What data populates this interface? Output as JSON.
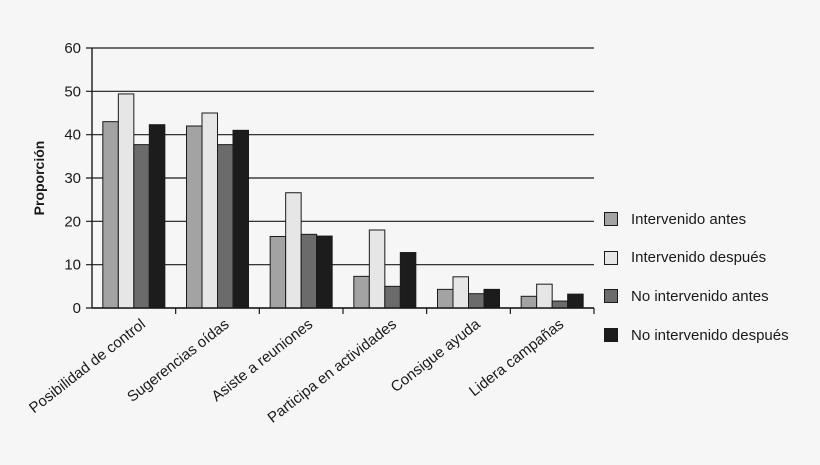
{
  "chart_data": {
    "type": "bar",
    "title": "",
    "xlabel": "",
    "ylabel": "Proporción",
    "ylim": [
      0,
      60
    ],
    "yticks": [
      0,
      10,
      20,
      30,
      40,
      50,
      60
    ],
    "grid": true,
    "legend_position": "right",
    "categories": [
      "Posibilidad de control",
      "Sugerencias oídas",
      "Asiste a reuniones",
      "Participa en actividades",
      "Consigue ayuda",
      "Lidera campañas"
    ],
    "series": [
      {
        "name": "Intervenido antes",
        "color": "#a3a3a3",
        "values": [
          43,
          42,
          16.5,
          7.3,
          4.3,
          2.7
        ]
      },
      {
        "name": "Intervenido después",
        "color": "#e6e6e6",
        "values": [
          49.4,
          45,
          26.6,
          18,
          7.2,
          5.5
        ]
      },
      {
        "name": "No intervenido antes",
        "color": "#6b6b6b",
        "values": [
          37.7,
          37.7,
          17,
          5,
          3.3,
          1.6
        ]
      },
      {
        "name": "No intervenido después",
        "color": "#1c1c1c",
        "values": [
          42.3,
          41,
          16.6,
          12.8,
          4.3,
          3.2
        ]
      }
    ]
  }
}
